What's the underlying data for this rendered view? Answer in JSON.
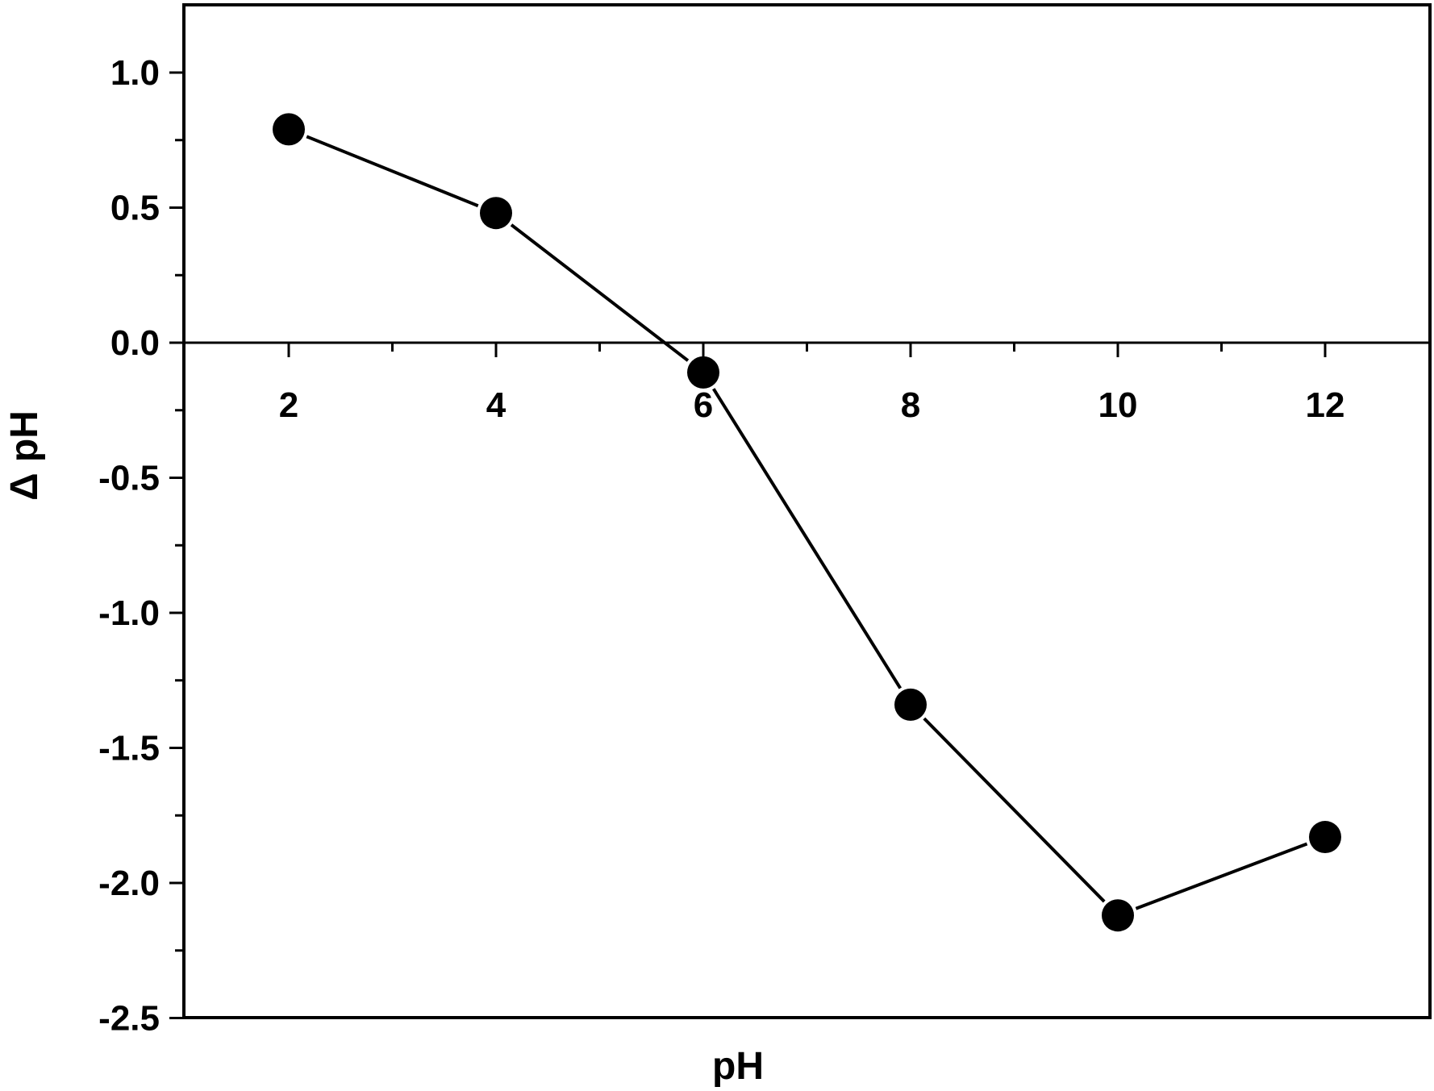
{
  "chart_data": {
    "type": "line",
    "title": "",
    "xlabel": "pH",
    "ylabel": "Δ pH",
    "x": [
      2,
      4,
      6,
      8,
      10,
      12
    ],
    "series": [
      {
        "values": [
          0.79,
          0.48,
          -0.11,
          -1.34,
          -2.12,
          -1.83
        ]
      }
    ],
    "xlim": [
      1,
      13
    ],
    "ylim": [
      -2.5,
      1.25
    ],
    "x_ticks": [
      "2",
      "4",
      "6",
      "8",
      "10",
      "12"
    ],
    "y_ticks": [
      "1.0",
      "0.5",
      "0.0",
      "-0.5",
      "-1.0",
      "-1.5",
      "-2.0",
      "-2.5"
    ],
    "grid": false,
    "legend": "none",
    "marker": "filled-circle",
    "color": "#000000"
  }
}
